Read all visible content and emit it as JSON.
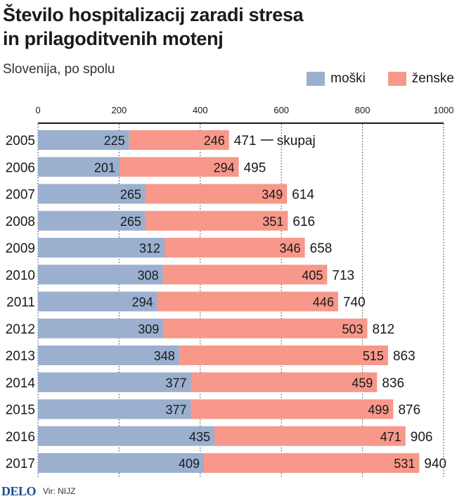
{
  "chart_data": {
    "type": "bar",
    "orientation": "horizontal",
    "stacked": true,
    "title_line1": "Število hospitalizacij zaradi stresa",
    "title_line2": "in prilagoditvenih motenj",
    "subtitle": "Slovenija, po spolu",
    "categories": [
      "2005",
      "2006",
      "2007",
      "2008",
      "2009",
      "2010",
      "2011",
      "2012",
      "2013",
      "2014",
      "2015",
      "2016",
      "2017"
    ],
    "series": [
      {
        "name": "moški",
        "color": "#9bafcf",
        "values": [
          225,
          201,
          265,
          265,
          312,
          308,
          294,
          309,
          348,
          377,
          377,
          435,
          409
        ]
      },
      {
        "name": "ženske",
        "color": "#f7988a",
        "values": [
          246,
          294,
          349,
          351,
          346,
          405,
          446,
          503,
          515,
          459,
          499,
          471,
          531
        ]
      }
    ],
    "totals": [
      471,
      495,
      614,
      616,
      658,
      713,
      740,
      812,
      863,
      836,
      876,
      906,
      940
    ],
    "total_annotation": "skupaj",
    "xlim": [
      0,
      1000
    ],
    "xticks": [
      0,
      200,
      400,
      600,
      800,
      1000
    ],
    "grid": true,
    "legend_position": "top-right"
  },
  "footer": {
    "logo": "DELO",
    "source": "Vir: NIJZ"
  }
}
